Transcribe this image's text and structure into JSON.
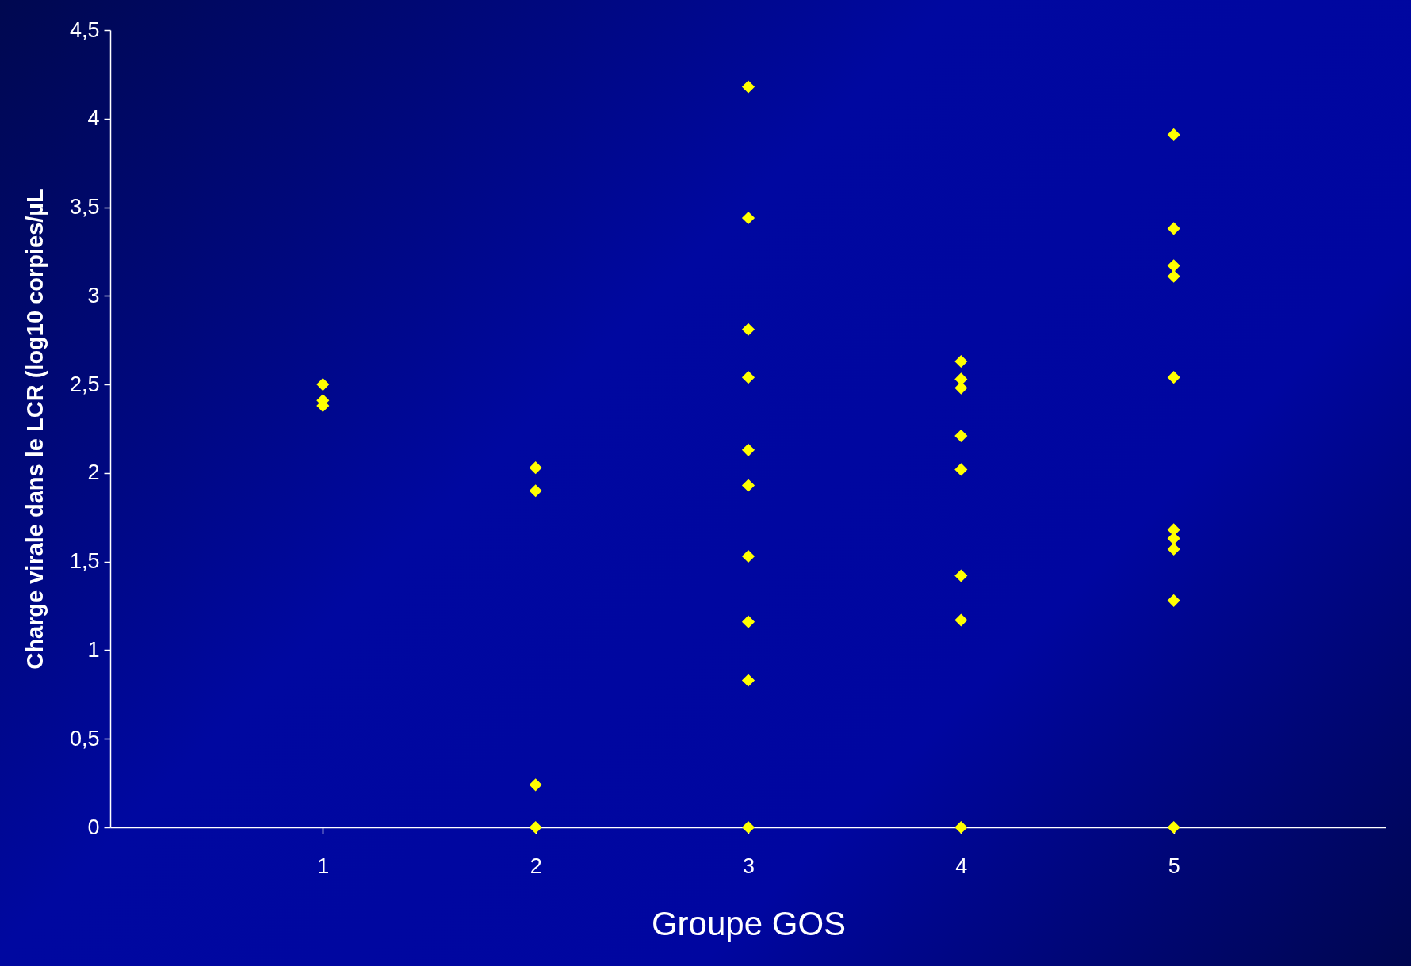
{
  "chart_data": {
    "type": "scatter",
    "xlabel": "Groupe GOS",
    "ylabel": "Charge virale dans le LCR (log10 corpies/µL",
    "series": [
      {
        "color": "#ffff00",
        "marker": "diamond",
        "x": [
          1,
          1,
          1,
          2,
          2,
          2,
          2,
          3,
          3,
          3,
          3,
          3,
          3,
          3,
          3,
          3,
          3,
          4,
          4,
          4,
          4,
          4,
          4,
          4,
          4,
          5,
          5,
          5,
          5,
          5,
          5,
          5,
          5,
          5,
          5
        ],
        "values": [
          2.5,
          2.41,
          2.38,
          2.03,
          1.9,
          0.24,
          0,
          4.18,
          3.44,
          2.81,
          2.54,
          2.13,
          1.93,
          1.53,
          1.16,
          0.83,
          0,
          2.63,
          2.53,
          2.48,
          2.21,
          2.02,
          1.42,
          1.17,
          0,
          3.91,
          3.38,
          3.17,
          3.11,
          2.54,
          1.68,
          1.63,
          1.57,
          1.28,
          0
        ]
      }
    ],
    "xlim": [
      0,
      6
    ],
    "xticks": [
      1,
      2,
      3,
      4,
      5
    ],
    "ylim": [
      0,
      4.5
    ],
    "yticks": [
      0,
      {
        "value": 0.5,
        "label": "0,5"
      },
      1,
      {
        "value": 1.5,
        "label": "1,5"
      },
      2,
      {
        "value": 2.5,
        "label": "2,5"
      },
      3,
      {
        "value": 3.5,
        "label": "3,5"
      },
      4,
      {
        "value": 4.5,
        "label": "4,5"
      }
    ],
    "grid": false
  }
}
